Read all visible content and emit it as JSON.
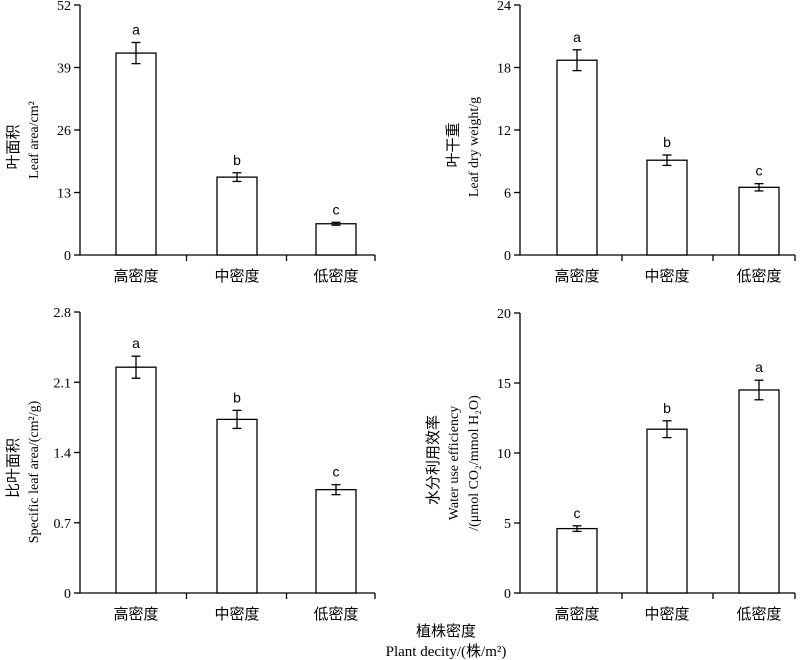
{
  "x_axis_title": {
    "cn": "植株密度",
    "en": "Plant decity/(株/m²)"
  },
  "chart_data": [
    {
      "type": "bar",
      "categories": [
        "高密度",
        "中密度",
        "低密度"
      ],
      "values": [
        42,
        16.2,
        6.5
      ],
      "errors": [
        2.2,
        0.9,
        0.3
      ],
      "significance": [
        "a",
        "b",
        "c"
      ],
      "ylim": [
        0,
        52
      ],
      "yticks": [
        0,
        13,
        26,
        39,
        52
      ],
      "ylabel_cn": "叶面积",
      "ylabel_en": "Leaf area/cm²",
      "grid": false
    },
    {
      "type": "bar",
      "categories": [
        "高密度",
        "中密度",
        "低密度"
      ],
      "values": [
        18.7,
        9.1,
        6.5
      ],
      "errors": [
        1.0,
        0.5,
        0.35
      ],
      "significance": [
        "a",
        "b",
        "c"
      ],
      "ylim": [
        0,
        24
      ],
      "yticks": [
        0,
        6,
        12,
        18,
        24
      ],
      "ylabel_cn": "叶干重",
      "ylabel_en": "Leaf dry weight/g",
      "grid": false
    },
    {
      "type": "bar",
      "categories": [
        "高密度",
        "中密度",
        "低密度"
      ],
      "values": [
        2.25,
        1.73,
        1.03
      ],
      "errors": [
        0.11,
        0.09,
        0.05
      ],
      "significance": [
        "a",
        "b",
        "c"
      ],
      "ylim": [
        0,
        2.8
      ],
      "yticks": [
        0,
        0.7,
        1.4,
        2.1,
        2.8
      ],
      "ylabel_cn": "比叶面积",
      "ylabel_en": "Specific leaf area/(cm²/g)",
      "grid": false
    },
    {
      "type": "bar",
      "categories": [
        "高密度",
        "中密度",
        "低密度"
      ],
      "values": [
        4.6,
        11.7,
        14.5
      ],
      "errors": [
        0.2,
        0.6,
        0.7
      ],
      "significance": [
        "c",
        "b",
        "a"
      ],
      "ylim": [
        0,
        20
      ],
      "yticks": [
        0,
        5,
        10,
        15,
        20
      ],
      "ylabel_cn": "水分利用效率",
      "ylabel_en": "Water use efficiency",
      "ylabel_en2": "/(μmol CO₂/mmol H₂O)",
      "grid": false
    }
  ]
}
